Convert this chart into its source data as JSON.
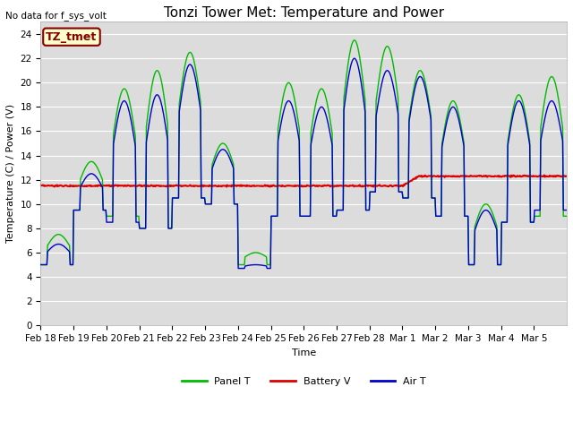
{
  "title": "Tonzi Tower Met: Temperature and Power",
  "top_left_text": "No data for f_sys_volt",
  "xlabel": "Time",
  "ylabel": "Temperature (C) / Power (V)",
  "ylim": [
    0,
    25
  ],
  "yticks": [
    0,
    2,
    4,
    6,
    8,
    10,
    12,
    14,
    16,
    18,
    20,
    22,
    24
  ],
  "xtick_labels": [
    "Feb 18",
    "Feb 19",
    "Feb 20",
    "Feb 21",
    "Feb 22",
    "Feb 23",
    "Feb 24",
    "Feb 25",
    "Feb 26",
    "Feb 27",
    "Feb 28",
    "Mar 1",
    "Mar 2",
    "Mar 3",
    "Mar 4",
    "Mar 5"
  ],
  "legend_labels": [
    "Panel T",
    "Battery V",
    "Air T"
  ],
  "panel_t_color": "#00bb00",
  "battery_v_color": "#dd0000",
  "air_t_color": "#0000cc",
  "bg_color": "#dcdcdc",
  "grid_color": "#ffffff",
  "annotation_text": "TZ_tmet",
  "annotation_color": "#880000",
  "annotation_bg": "#ffffcc",
  "figsize": [
    6.4,
    4.8
  ],
  "dpi": 100,
  "title_fontsize": 11,
  "label_fontsize": 8,
  "tick_fontsize": 7.5,
  "legend_fontsize": 8
}
